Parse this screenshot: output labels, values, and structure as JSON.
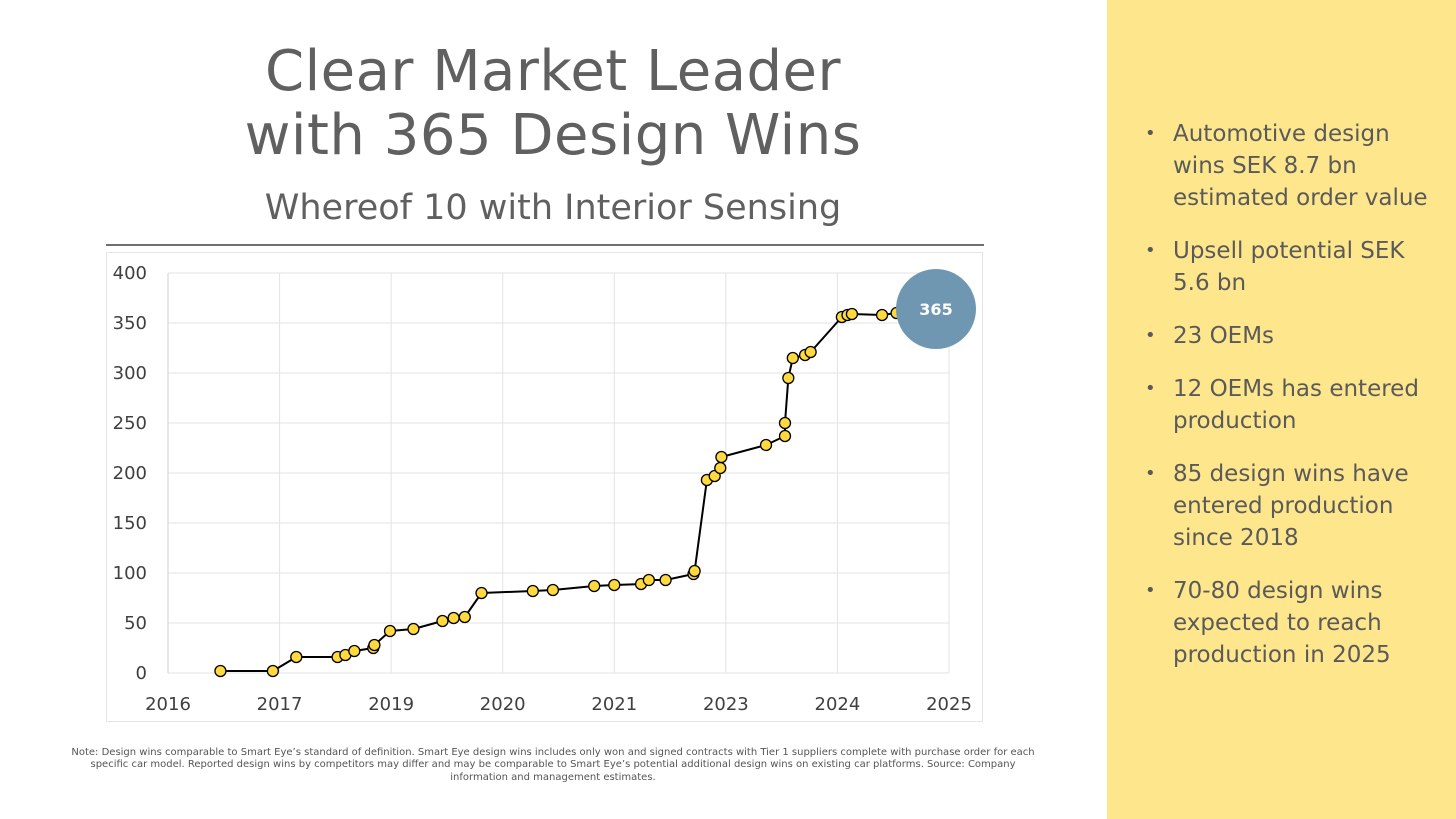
{
  "slide": {
    "title_line1": "Clear Market Leader",
    "title_line2": "with 365 Design Wins",
    "subtitle": "Whereof 10 with Interior Sensing",
    "note": "Note: Design wins comparable to Smart Eye’s standard of definition. Smart Eye design wins includes only won and signed contracts with Tier 1 suppliers complete with purchase order for each specific car model. Reported design wins by competitors may differ and may be comparable to Smart Eye’s potential additional design wins on existing car platforms. Source: Company information and management estimates.",
    "bullets": [
      "Automotive design wins SEK 8.7 bn estimated order value",
      "Upsell potential SEK 5.6 bn",
      "23 OEMs",
      "12 OEMs has entered production",
      "85 design wins have entered production since 2018",
      "70-80 design wins expected to reach production in 2025"
    ],
    "colors": {
      "side_panel": "#fee68c",
      "marker_fill": "#ffd93d",
      "bubble": "#7097b2"
    }
  },
  "chart_data": {
    "type": "line",
    "title": "",
    "xlabel": "",
    "ylabel": "",
    "x_tick_labels": [
      "2016",
      "2017",
      "2019",
      "2020",
      "2021",
      "2023",
      "2024",
      "2025"
    ],
    "y_ticks": [
      0,
      50,
      100,
      150,
      200,
      250,
      300,
      350,
      400
    ],
    "ylim": [
      0,
      400
    ],
    "grid": true,
    "callout": {
      "label": "365",
      "value": 365
    },
    "series": [
      {
        "x": [
          0.47,
          0.94,
          1.15,
          1.52,
          1.59,
          1.67,
          1.84,
          1.85,
          1.99,
          2.2,
          2.46,
          2.56,
          2.66,
          2.81,
          3.27,
          3.45,
          3.82,
          4.0,
          4.24,
          4.31,
          4.46,
          4.71,
          4.72,
          4.83,
          4.9,
          4.95,
          4.96,
          5.36,
          5.53,
          5.53,
          5.56,
          5.6,
          5.71,
          5.76,
          6.04,
          6.09,
          6.13,
          6.4,
          6.53,
          6.6
        ],
        "y": [
          2,
          2,
          16,
          16,
          18,
          22,
          25,
          28,
          42,
          44,
          52,
          55,
          56,
          80,
          82,
          83,
          87,
          88,
          89,
          93,
          93,
          99,
          102,
          193,
          197,
          205,
          216,
          228,
          237,
          250,
          295,
          315,
          318,
          321,
          356,
          358,
          359,
          358,
          360,
          365
        ],
        "values": [
          2,
          2,
          16,
          16,
          18,
          22,
          25,
          28,
          42,
          44,
          52,
          55,
          56,
          80,
          82,
          83,
          87,
          88,
          89,
          93,
          93,
          99,
          102,
          193,
          197,
          205,
          216,
          228,
          237,
          250,
          295,
          315,
          318,
          321,
          356,
          358,
          359,
          358,
          360,
          365
        ]
      }
    ]
  }
}
